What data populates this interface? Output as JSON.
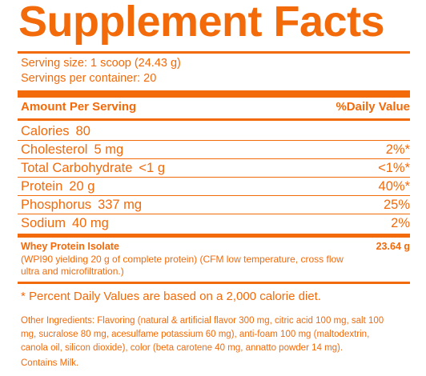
{
  "title": "Supplement Facts",
  "serving_size": "Serving size: 1 scoop (24.43 g)",
  "servings_per_container": "Servings per container: 20",
  "header": {
    "amount": "Amount Per Serving",
    "daily_value": "%Daily Value"
  },
  "nutrients": [
    {
      "name": "Calories",
      "amount": "80",
      "dv": ""
    },
    {
      "name": "Cholesterol",
      "amount": "5 mg",
      "dv": "2%*"
    },
    {
      "name": "Total Carbohydrate",
      "amount": "<1 g",
      "dv": "<1%*"
    },
    {
      "name": "Protein",
      "amount": "20 g",
      "dv": "40%*"
    },
    {
      "name": "Phosphorus",
      "amount": "337 mg",
      "dv": "25%"
    },
    {
      "name": "Sodium",
      "amount": "40 mg",
      "dv": "2%"
    }
  ],
  "whey": {
    "name": "Whey Protein Isolate",
    "amount": "23.64 g",
    "desc_line1": "(WPI90 yielding 20 g of complete protein) (CFM low temperature, cross flow",
    "desc_line2": "ultra and microfiltration.)"
  },
  "footnote": "* Percent Daily Values are based on a 2,000 calorie diet.",
  "ingredients": {
    "line1": "Other Ingredients: Flavoring (natural & artificial flavor 300 mg, citric acid 100 mg, salt 100",
    "line2": "mg,  sucralose 80 mg, acesulfame potassium 60 mg), anti-foam 100 mg (maltodextrin,",
    "line3": "canola oil, silicon dioxide), color (beta carotene 40 mg, annatto powder 14 mg)."
  },
  "allergen": "Contains Milk.",
  "colors": {
    "accent": "#f26a0a"
  }
}
